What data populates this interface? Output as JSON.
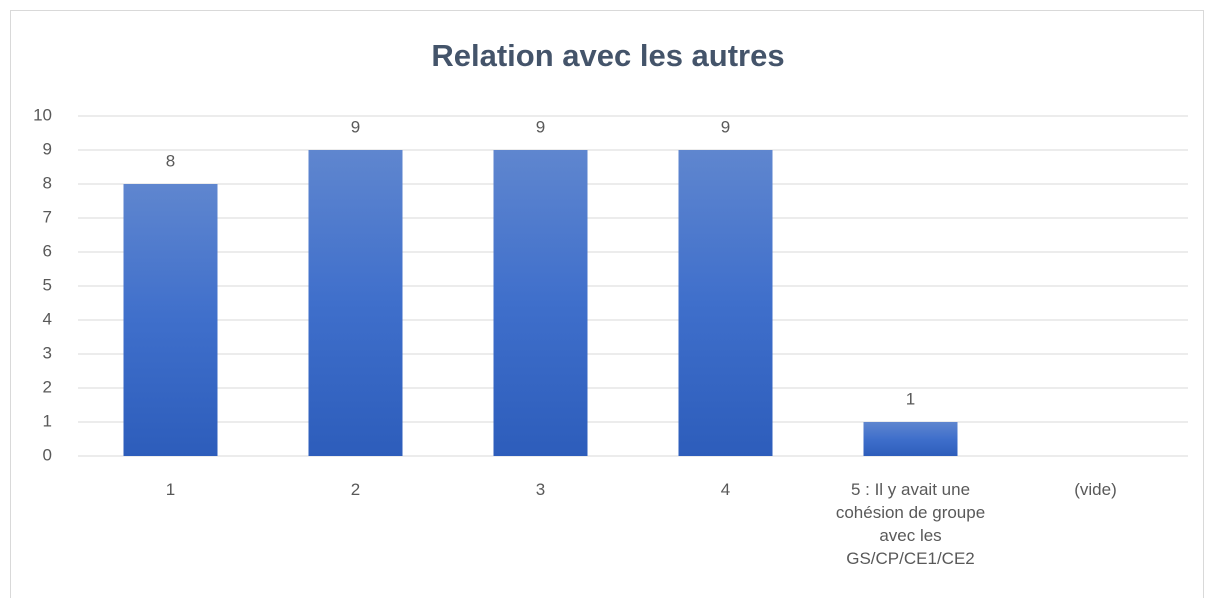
{
  "chart_data": {
    "type": "bar",
    "title": "Relation avec les autres",
    "categories": [
      "1",
      "2",
      "3",
      "4",
      "5 : Il y avait une cohésion de groupe avec les GS/CP/CE1/CE2",
      "(vide)"
    ],
    "values": [
      8,
      9,
      9,
      9,
      1,
      null
    ],
    "color": "#4472c4",
    "ylim": [
      0,
      10
    ],
    "yticks": [
      0,
      1,
      2,
      3,
      4,
      5,
      6,
      7,
      8,
      9,
      10
    ],
    "grid": true
  }
}
